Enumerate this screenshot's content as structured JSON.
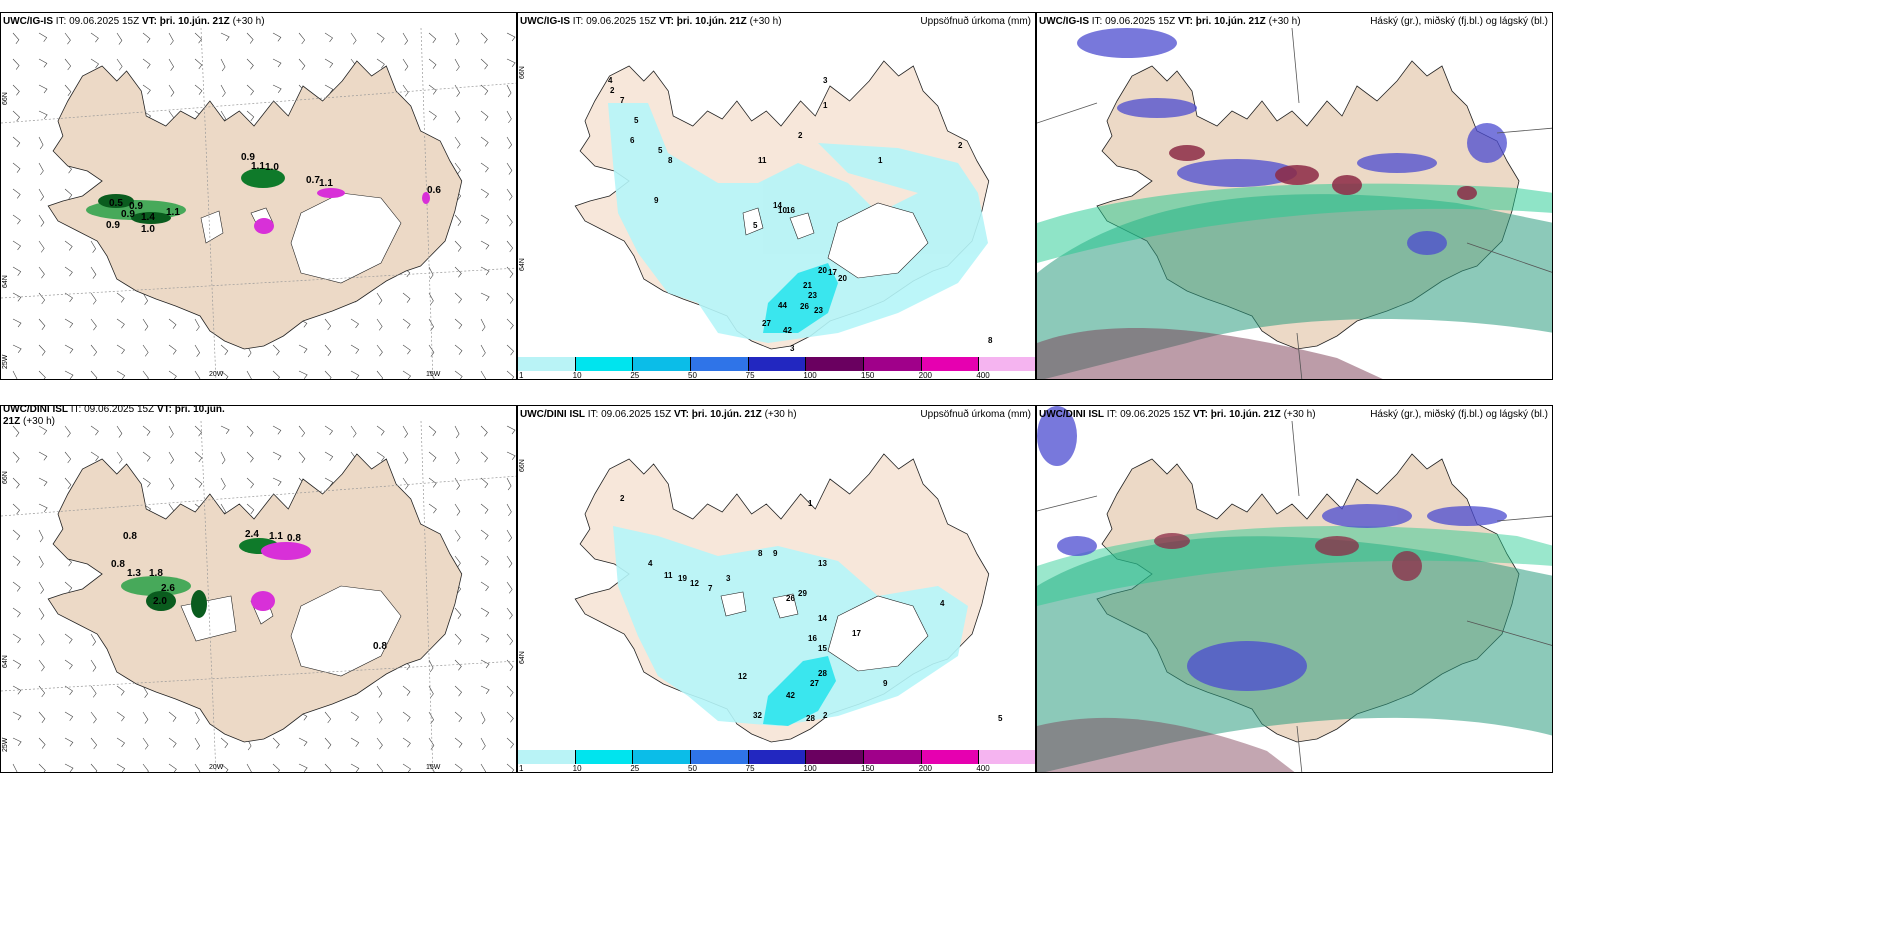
{
  "colors": {
    "land": "#ecd9c6",
    "precip_light": "#b5f5f8",
    "precip_mid": "#3ae6ee",
    "cloud_low": "#2e9c7f",
    "cloud_mid": "#4b4bd0",
    "cloud_high": "#8c2a45",
    "snow_green": "#0f7a2a",
    "snow_magenta": "#d830d8"
  },
  "top_row": {
    "left": {
      "model": "UWC/IG-IS",
      "it": "IT: 09.06.2025 15Z",
      "vt": "VT: þri. 10.jún. 21Z",
      "lead": "(+30 h)"
    },
    "middle": {
      "model": "UWC/IG-IS",
      "it": "IT: 09.06.2025 15Z",
      "vt": "VT: þri. 10.jún. 21Z",
      "lead": "(+30 h)",
      "right_label": "Uppsöfnuð úrkoma (mm)"
    },
    "right": {
      "model": "UWC/IG-IS",
      "it": "IT: 09.06.2025 15Z",
      "vt": "VT: þri. 10.jún. 21Z",
      "lead": "(+30 h)",
      "right_label": "Háský (gr.), miðský (fj.bl.) og lágský (bl.)"
    }
  },
  "bottom_row": {
    "left": {
      "model": "UWC/DINI ISL",
      "it": "IT: 09.06.2025 15Z",
      "vt": "VT: þri. 10.jún. 21Z",
      "lead": "(+30",
      "lead2": "h)"
    },
    "middle": {
      "model": "UWC/DINI ISL",
      "it": "IT: 09.06.2025 15Z",
      "vt": "VT: þri. 10.jún. 21Z",
      "lead": "(+30 h)",
      "right_label": "Uppsöfnuð úrkoma (mm)"
    },
    "right": {
      "model": "UWC/DINI ISL",
      "it": "IT: 09.06.2025 15Z",
      "vt": "VT: þri. 10.jún. 21Z",
      "lead": "(+30 h)",
      "right_label": "Háský (gr.), miðský (fj.bl.) og lágský (bl.)"
    }
  },
  "axes": {
    "lat_66": "66N",
    "lat_64": "64N",
    "lon_25": "25W",
    "lon_20": "20W",
    "lon_15": "15W"
  },
  "colorbar": {
    "ticks": [
      "1",
      "10",
      "25",
      "50",
      "75",
      "100",
      "150",
      "200",
      "400"
    ],
    "colors": [
      "#b9f3f6",
      "#00e4ee",
      "#0bbde8",
      "#2f74e8",
      "#2227c0",
      "#6a0060",
      "#a0008a",
      "#e600b0",
      "#f5b4f0"
    ]
  },
  "top_snow_labels": [
    "0.9",
    "1.1",
    "1.0",
    "0.9",
    "1.4",
    "1.1",
    "0.9",
    "1.0",
    "0.5",
    "0.9",
    "0.7",
    "1.1",
    "0.6"
  ],
  "bottom_snow_labels": [
    "0.8",
    "0.8",
    "1.3",
    "1.8",
    "2.6",
    "2.0",
    "0.8",
    "2.4",
    "1.1",
    "0.8"
  ],
  "top_precip_labels": [
    "4",
    "2",
    "7",
    "5",
    "6",
    "5",
    "8",
    "9",
    "11",
    "3",
    "1",
    "2",
    "14",
    "16",
    "5",
    "10",
    "20",
    "21",
    "17",
    "20",
    "23",
    "44",
    "26",
    "23",
    "42",
    "27",
    "3",
    "8",
    "1",
    "2"
  ],
  "bottom_precip_labels": [
    "2",
    "4",
    "11",
    "19",
    "12",
    "7",
    "8",
    "9",
    "26",
    "29",
    "13",
    "14",
    "16",
    "17",
    "15",
    "28",
    "27",
    "42",
    "32",
    "28",
    "12",
    "9",
    "2",
    "5",
    "3",
    "4",
    "1"
  ]
}
